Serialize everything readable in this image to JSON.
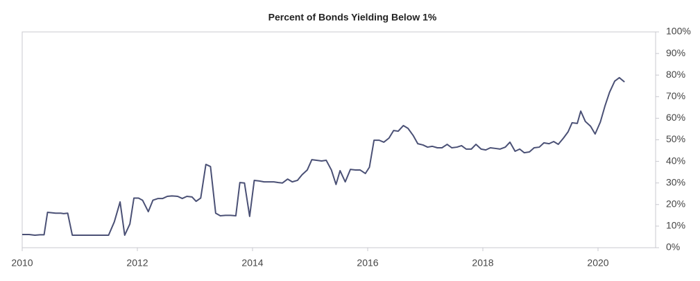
{
  "chart_data": {
    "type": "line",
    "title": "Percent of Bonds Yielding Below 1%",
    "x": [
      2010.0,
      2010.12,
      2010.22,
      2010.31,
      2010.38,
      2010.44,
      2010.58,
      2010.67,
      2010.72,
      2010.79,
      2010.87,
      2011.0,
      2011.12,
      2011.3,
      2011.42,
      2011.5,
      2011.6,
      2011.7,
      2011.78,
      2011.87,
      2011.94,
      2012.02,
      2012.09,
      2012.19,
      2012.27,
      2012.36,
      2012.44,
      2012.52,
      2012.6,
      2012.7,
      2012.78,
      2012.86,
      2012.95,
      2013.02,
      2013.1,
      2013.19,
      2013.27,
      2013.36,
      2013.44,
      2013.53,
      2013.62,
      2013.71,
      2013.78,
      2013.86,
      2013.95,
      2014.03,
      2014.12,
      2014.2,
      2014.28,
      2014.37,
      2014.45,
      2014.52,
      2014.61,
      2014.69,
      2014.78,
      2014.86,
      2014.95,
      2015.03,
      2015.11,
      2015.2,
      2015.28,
      2015.37,
      2015.45,
      2015.52,
      2015.61,
      2015.7,
      2015.79,
      2015.87,
      2015.96,
      2016.03,
      2016.11,
      2016.2,
      2016.28,
      2016.37,
      2016.45,
      2016.53,
      2016.62,
      2016.7,
      2016.79,
      2016.87,
      2016.96,
      2017.04,
      2017.12,
      2017.21,
      2017.29,
      2017.38,
      2017.46,
      2017.55,
      2017.63,
      2017.71,
      2017.8,
      2017.88,
      2017.97,
      2018.05,
      2018.13,
      2018.22,
      2018.3,
      2018.39,
      2018.47,
      2018.56,
      2018.64,
      2018.72,
      2018.81,
      2018.89,
      2018.98,
      2019.06,
      2019.15,
      2019.23,
      2019.31,
      2019.4,
      2019.48,
      2019.55,
      2019.64,
      2019.7,
      2019.78,
      2019.87,
      2019.95,
      2020.04,
      2020.12,
      2020.2,
      2020.29,
      2020.37,
      2020.46
    ],
    "values": [
      6.1,
      6.1,
      5.8,
      6,
      6,
      16.4,
      16,
      16,
      15.8,
      16,
      5.8,
      5.8,
      5.8,
      5.8,
      5.8,
      5.8,
      12,
      21.2,
      5.8,
      11,
      23,
      23,
      22,
      16.7,
      22,
      22.8,
      22.8,
      23.8,
      24,
      23.8,
      22.8,
      23.8,
      23.5,
      21.5,
      23,
      38.6,
      37.6,
      16,
      14.8,
      15,
      15,
      14.8,
      30.2,
      30,
      14.5,
      31.2,
      30.9,
      30.5,
      30.5,
      30.5,
      30.2,
      30,
      31.8,
      30.5,
      31.2,
      33.8,
      36,
      40.8,
      40.5,
      40.2,
      40.5,
      36,
      29.3,
      35.7,
      30.5,
      36.3,
      36,
      36,
      34.4,
      37.3,
      49.8,
      49.8,
      48.9,
      50.8,
      54.3,
      54,
      56.6,
      55.3,
      52,
      48.2,
      47.6,
      46.6,
      47,
      46.3,
      46.3,
      47.9,
      46.3,
      46.6,
      47.3,
      45.7,
      45.7,
      47.9,
      45.7,
      45.3,
      46.3,
      46,
      45.7,
      46.6,
      48.9,
      44.7,
      45.7,
      44,
      44.4,
      46.3,
      46.6,
      48.6,
      48.2,
      49.2,
      47.9,
      50.8,
      53.7,
      57.9,
      57.6,
      63.3,
      58.5,
      56.3,
      52.7,
      58.2,
      65.6,
      72,
      77.2,
      78.8,
      76.8
    ],
    "color": "#4a5075",
    "xlim": [
      2010,
      2021
    ],
    "xticks": [
      2010,
      2012,
      2014,
      2016,
      2018,
      2020
    ],
    "ylim": [
      0,
      100
    ],
    "yticks": [
      {
        "value": 0,
        "label": "0%"
      },
      {
        "value": 10,
        "label": "10%"
      },
      {
        "value": 20,
        "label": "20%"
      },
      {
        "value": 30,
        "label": "30%"
      },
      {
        "value": 40,
        "label": "40%"
      },
      {
        "value": 50,
        "label": "50%"
      },
      {
        "value": 60,
        "label": "60%"
      },
      {
        "value": 70,
        "label": "70%"
      },
      {
        "value": 80,
        "label": "80%"
      },
      {
        "value": 90,
        "label": "90%"
      },
      {
        "value": 100,
        "label": "100%"
      }
    ]
  }
}
